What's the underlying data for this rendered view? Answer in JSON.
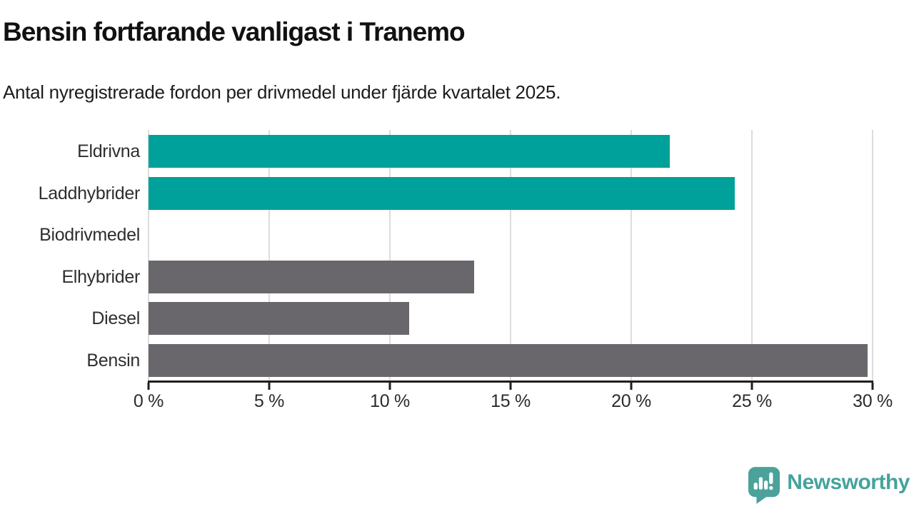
{
  "header": {
    "title": "Bensin fortfarande vanligast i Tranemo",
    "subtitle": "Antal nyregistrerade fordon per drivmedel under fjärde kvartalet 2025."
  },
  "chart_data": {
    "type": "bar",
    "orientation": "horizontal",
    "title": "Bensin fortfarande vanligast i Tranemo",
    "subtitle": "Antal nyregistrerade fordon per drivmedel under fjärde kvartalet 2025.",
    "categories": [
      "Eldrivna",
      "Laddhybrider",
      "Biodrivmedel",
      "Elhybrider",
      "Diesel",
      "Bensin"
    ],
    "values": [
      21.6,
      24.3,
      0,
      13.5,
      10.8,
      29.8
    ],
    "value_unit": "%",
    "xlim": [
      0,
      30
    ],
    "x_ticks": [
      0,
      5,
      10,
      15,
      20,
      25,
      30
    ],
    "x_tick_labels": [
      "0 %",
      "5 %",
      "10 %",
      "15 %",
      "20 %",
      "25 %",
      "30 %"
    ],
    "bar_colors": [
      "#00a19a",
      "#00a19a",
      "#00a19a",
      "#6a676c",
      "#6a676c",
      "#6a676c"
    ],
    "highlight_color": "#00a19a",
    "default_color": "#6a676c",
    "gridline_color": "#dcdcdc",
    "axis_color": "#1f1f1f",
    "grid": "vertical",
    "legend": "none"
  },
  "branding": {
    "name": "Newsworthy",
    "color": "#46a39c",
    "icon": "newsworthy-chart-bubble-icon"
  }
}
